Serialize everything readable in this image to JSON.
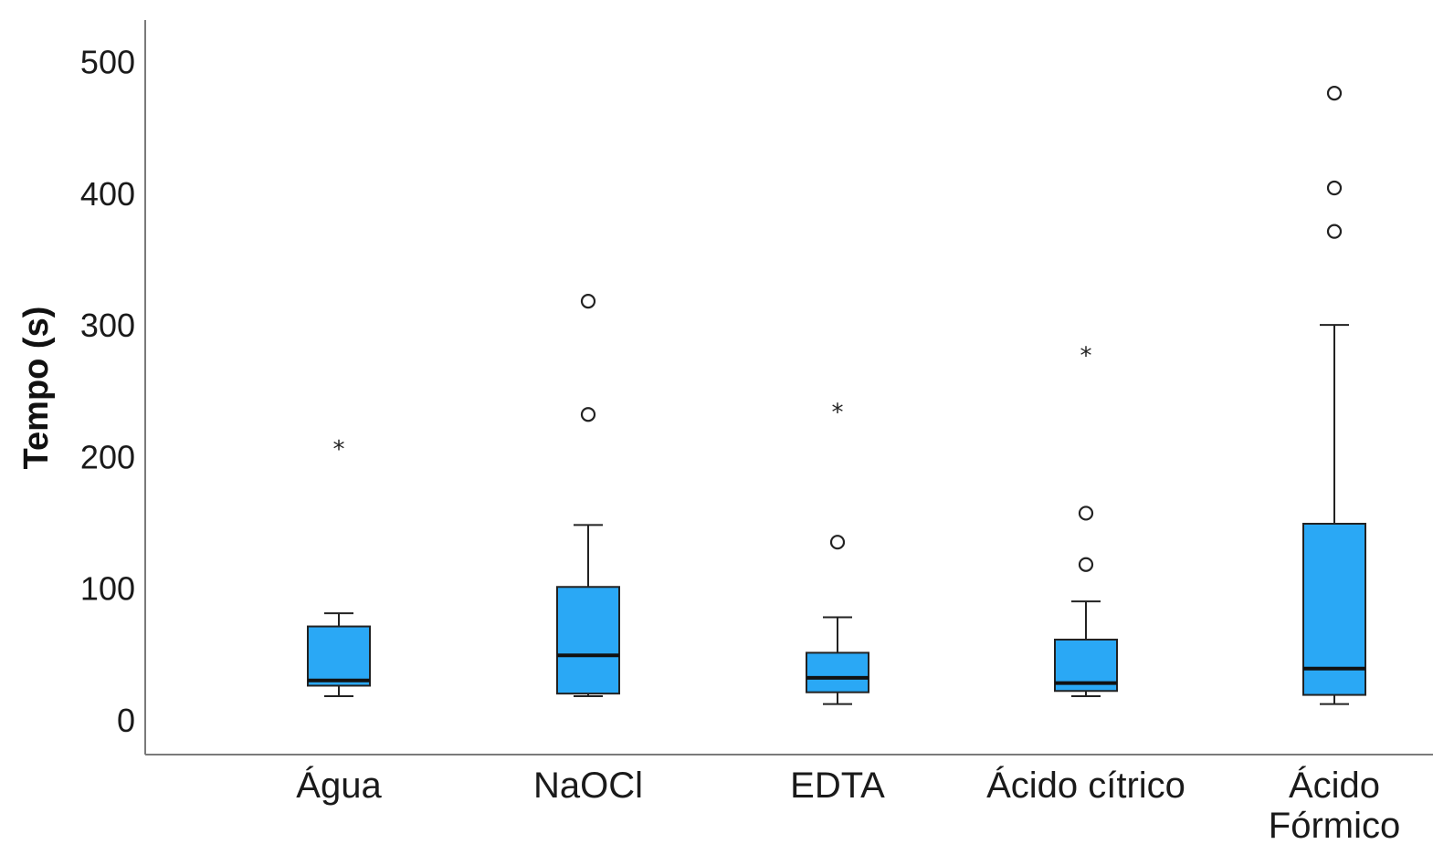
{
  "chart_data": {
    "type": "boxplot",
    "ylabel": "Tempo (s)",
    "xlabel": "",
    "ylim": [
      0,
      530
    ],
    "yticks": [
      0,
      100,
      200,
      300,
      400,
      500
    ],
    "categories": [
      "Água",
      "NaOCl",
      "EDTA",
      "Ácido cítrico",
      "Ácido\nFórmico"
    ],
    "box_color": "#2aa8f5",
    "boxes": [
      {
        "category": "Água",
        "min": 18,
        "q1": 26,
        "median": 30,
        "q3": 71,
        "max": 81,
        "outliers": [],
        "extremes": [
          208
        ]
      },
      {
        "category": "NaOCl",
        "min": 18,
        "q1": 20,
        "median": 49,
        "q3": 101,
        "max": 148,
        "outliers": [
          232,
          318
        ],
        "extremes": []
      },
      {
        "category": "EDTA",
        "min": 12,
        "q1": 21,
        "median": 32,
        "q3": 51,
        "max": 78,
        "outliers": [
          135
        ],
        "extremes": [
          236
        ]
      },
      {
        "category": "Ácido cítrico",
        "min": 18,
        "q1": 22,
        "median": 28,
        "q3": 61,
        "max": 90,
        "outliers": [
          118,
          157
        ],
        "extremes": [
          279
        ]
      },
      {
        "category": "Ácido\nFórmico",
        "min": 12,
        "q1": 19,
        "median": 39,
        "q3": 149,
        "max": 300,
        "outliers": [
          371,
          404,
          476
        ],
        "extremes": []
      }
    ]
  }
}
